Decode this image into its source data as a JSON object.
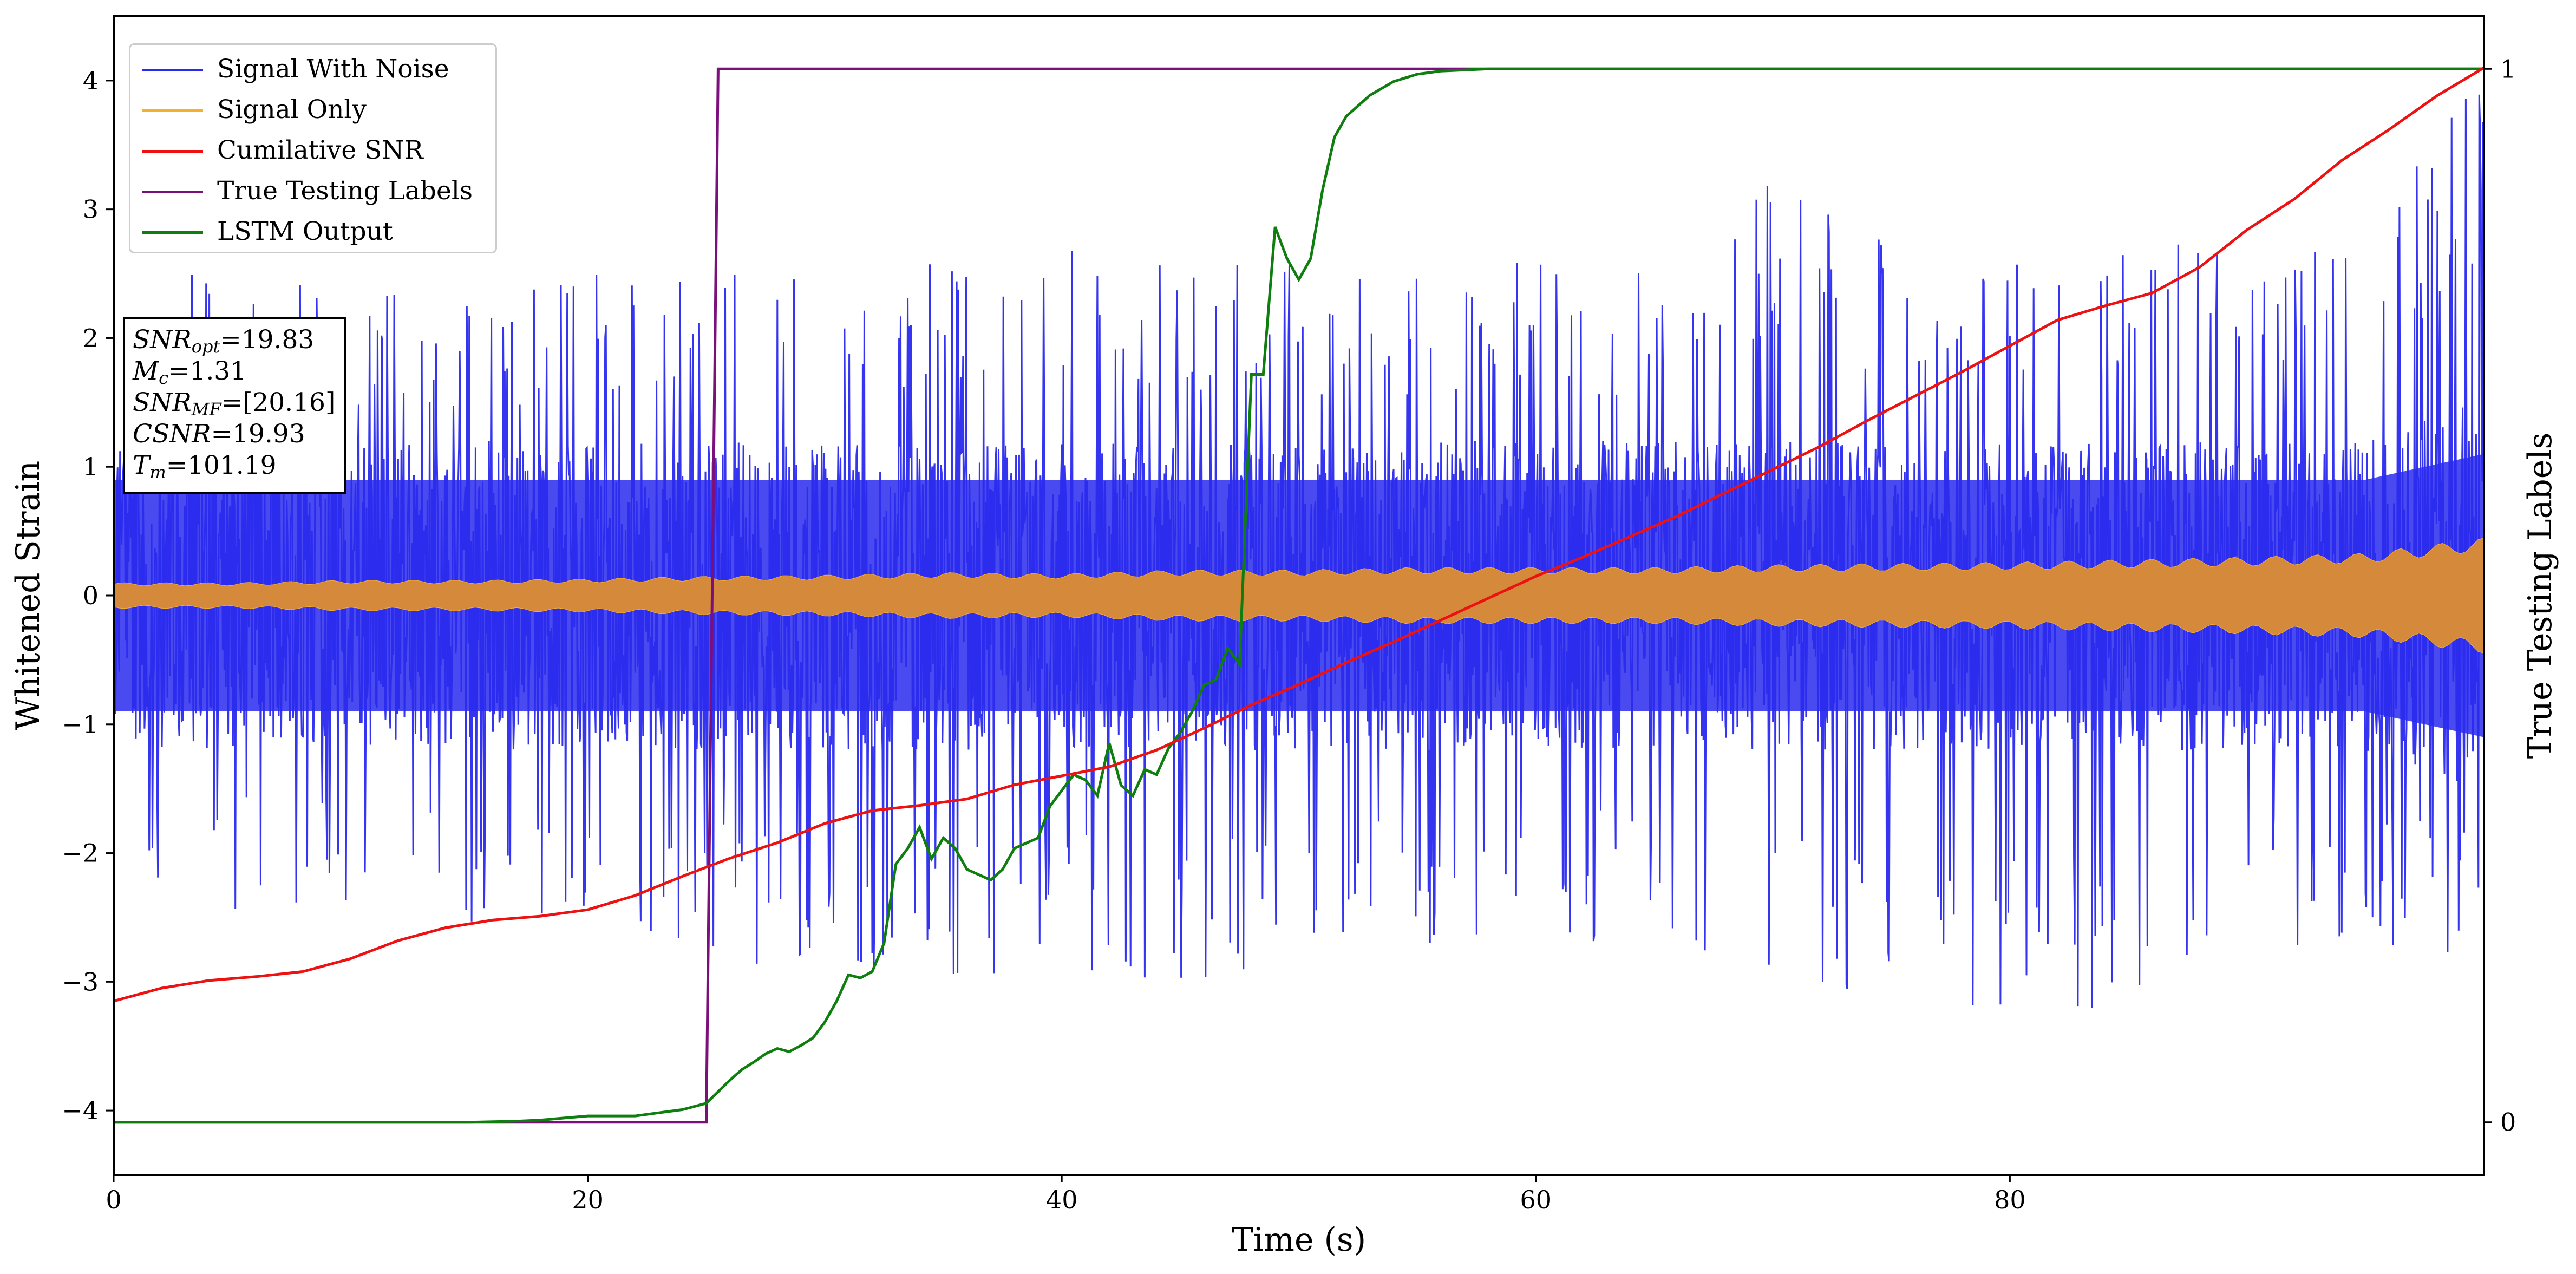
{
  "chart_data": {
    "type": "line",
    "x": [
      0,
      2,
      4,
      6,
      8,
      10,
      12,
      14,
      16,
      18,
      20,
      22,
      24,
      26,
      28,
      30,
      32,
      34,
      36,
      38,
      40,
      42,
      44,
      46,
      48,
      50,
      52,
      54,
      56,
      58,
      60,
      62,
      64,
      66,
      68,
      70,
      72,
      74,
      76,
      78,
      80,
      82,
      84,
      86,
      88,
      90,
      92,
      94,
      96,
      98,
      100
    ],
    "series": [
      {
        "name": "Signal With Noise",
        "color": "#2a2aef",
        "axis": "left",
        "noise_envelope": {
          "x": [
            0,
            5,
            10,
            15,
            20,
            25,
            30,
            35,
            40,
            45,
            50,
            55,
            60,
            65,
            70,
            75,
            80,
            85,
            90,
            95,
            100
          ],
          "upper": [
            2.5,
            2.5,
            2.4,
            2.4,
            2.5,
            2.6,
            2.6,
            2.6,
            2.7,
            2.6,
            2.6,
            2.6,
            2.6,
            2.6,
            3.3,
            2.8,
            2.8,
            2.8,
            2.8,
            2.8,
            4.1
          ],
          "lower": [
            -2.3,
            -2.6,
            -2.6,
            -2.6,
            -2.6,
            -2.9,
            -2.9,
            -3.0,
            -3.0,
            -3.0,
            -3.0,
            -2.7,
            -2.7,
            -2.7,
            -3.2,
            -3.0,
            -3.4,
            -3.2,
            -2.8,
            -2.8,
            -3.0
          ],
          "core_upper": [
            0.6,
            0.6,
            0.6,
            0.6,
            0.6,
            0.6,
            0.6,
            0.6,
            0.6,
            0.6,
            0.6,
            0.6,
            0.6,
            0.6,
            0.6,
            0.6,
            0.6,
            0.6,
            0.6,
            0.6,
            0.8
          ],
          "core_lower": [
            -0.6,
            -0.6,
            -0.6,
            -0.6,
            -0.6,
            -0.6,
            -0.6,
            -0.6,
            -0.6,
            -0.6,
            -0.6,
            -0.6,
            -0.6,
            -0.6,
            -0.6,
            -0.6,
            -0.6,
            -0.6,
            -0.6,
            -0.6,
            -0.8
          ]
        }
      },
      {
        "name": "Signal Only",
        "color": "#f5b02e",
        "fill_color": "#d5893a",
        "axis": "left",
        "amplitude_envelope": {
          "x": [
            0,
            5,
            10,
            15,
            20,
            25,
            30,
            35,
            40,
            45,
            50,
            55,
            60,
            65,
            70,
            75,
            80,
            85,
            90,
            95,
            100
          ],
          "amp": [
            0.1,
            0.1,
            0.12,
            0.12,
            0.13,
            0.15,
            0.16,
            0.18,
            0.17,
            0.2,
            0.2,
            0.22,
            0.22,
            0.22,
            0.24,
            0.25,
            0.26,
            0.28,
            0.3,
            0.33,
            0.45
          ]
        }
      },
      {
        "name": "Cumilative SNR",
        "color": "#ee1111",
        "axis": "left",
        "x": [
          0,
          2,
          4,
          6,
          8,
          10,
          12,
          14,
          16,
          18,
          20,
          22,
          24,
          26,
          28,
          30,
          32,
          34,
          36,
          38,
          40,
          42,
          44,
          46,
          48,
          50,
          52,
          54,
          56,
          58,
          60,
          62,
          64,
          66,
          68,
          70,
          72,
          74,
          76,
          78,
          80,
          82,
          84,
          86,
          88,
          90,
          92,
          94,
          96,
          98,
          100
        ],
        "values": [
          -3.15,
          -3.05,
          -2.99,
          -2.96,
          -2.92,
          -2.82,
          -2.68,
          -2.58,
          -2.52,
          -2.49,
          -2.44,
          -2.33,
          -2.18,
          -2.04,
          -1.92,
          -1.77,
          -1.67,
          -1.63,
          -1.58,
          -1.47,
          -1.4,
          -1.33,
          -1.2,
          -1.03,
          -0.85,
          -0.69,
          -0.52,
          -0.36,
          -0.19,
          -0.02,
          0.15,
          0.3,
          0.46,
          0.62,
          0.8,
          0.98,
          1.16,
          1.36,
          1.55,
          1.74,
          1.94,
          2.14,
          2.25,
          2.35,
          2.55,
          2.84,
          3.08,
          3.38,
          3.62,
          3.88,
          4.1
        ]
      },
      {
        "name": "True Testing Labels",
        "color": "#7b0f7b",
        "axis": "right",
        "x": [
          0,
          25,
          25.5,
          100
        ],
        "values": [
          0,
          0,
          1,
          1
        ]
      },
      {
        "name": "LSTM Output",
        "color": "#0e7f0e",
        "axis": "right",
        "x": [
          0,
          5,
          10,
          15,
          17,
          18,
          19,
          20,
          21,
          22,
          23,
          24,
          25,
          26,
          26.5,
          27,
          27.5,
          28,
          28.5,
          29,
          29.5,
          30,
          30.5,
          31,
          31.5,
          32,
          32.5,
          33,
          33.5,
          34,
          34.5,
          35,
          35.5,
          36,
          36.5,
          37,
          37.5,
          38,
          38.5,
          39,
          39.5,
          40,
          40.5,
          41,
          41.5,
          42,
          42.5,
          43,
          43.5,
          44,
          44.5,
          45,
          45.5,
          46,
          46.5,
          47,
          47.5,
          48,
          48.5,
          49,
          49.5,
          50,
          50.5,
          51,
          51.5,
          52,
          52.5,
          53,
          54,
          55,
          56,
          58,
          60,
          65,
          70,
          80,
          90,
          100
        ],
        "values": [
          0,
          0,
          0,
          0,
          0.001,
          0.002,
          0.004,
          0.006,
          0.006,
          0.006,
          0.009,
          0.012,
          0.018,
          0.04,
          0.05,
          0.057,
          0.065,
          0.07,
          0.067,
          0.073,
          0.08,
          0.095,
          0.115,
          0.14,
          0.137,
          0.143,
          0.17,
          0.245,
          0.26,
          0.28,
          0.25,
          0.27,
          0.26,
          0.24,
          0.235,
          0.23,
          0.24,
          0.26,
          0.265,
          0.27,
          0.3,
          0.315,
          0.33,
          0.325,
          0.31,
          0.36,
          0.32,
          0.31,
          0.335,
          0.33,
          0.355,
          0.37,
          0.39,
          0.415,
          0.42,
          0.45,
          0.435,
          0.71,
          0.71,
          0.85,
          0.82,
          0.8,
          0.82,
          0.885,
          0.935,
          0.955,
          0.965,
          0.975,
          0.988,
          0.995,
          0.998,
          1.0,
          1.0,
          1.0,
          1.0,
          1.0,
          1.0,
          1.0
        ]
      }
    ],
    "xlabel": "Time (s)",
    "ylabel": "Whitened Strain",
    "y2label": "True Testing Labels",
    "xlim": [
      0,
      100
    ],
    "ylim": [
      -4.5,
      4.5
    ],
    "y2lim": [
      -0.05,
      1.05
    ],
    "xticks": [
      0,
      20,
      40,
      60,
      80
    ],
    "xtick_labels": [
      "0",
      "20",
      "40",
      "60",
      "80"
    ],
    "yticks": [
      -4,
      -3,
      -2,
      -1,
      0,
      1,
      2,
      3,
      4
    ],
    "ytick_labels": [
      "−4",
      "−3",
      "−2",
      "−1",
      "0",
      "1",
      "2",
      "3",
      "4"
    ],
    "y2ticks": [
      0,
      1
    ],
    "y2tick_labels": [
      "0",
      "1"
    ],
    "legend_position": "top-left",
    "grid": false
  },
  "legend": {
    "items": [
      {
        "label": "Signal With Noise",
        "color": "#2a2aef"
      },
      {
        "label": "Signal Only",
        "color": "#f5b02e"
      },
      {
        "label": "Cumilative SNR",
        "color": "#ee1111"
      },
      {
        "label": "True Testing Labels",
        "color": "#7b0f7b"
      },
      {
        "label": "LSTM Output",
        "color": "#0e7f0e"
      }
    ]
  },
  "infobox": {
    "snr_opt_base": "SNR",
    "snr_opt_sub": "opt",
    "snr_opt_value": "=19.83",
    "mc_base": "M",
    "mc_sub": "c",
    "mc_value": "=1.31",
    "snr_mf_base": "SNR",
    "snr_mf_sub": "MF",
    "snr_mf_value": "=[20.16]",
    "csnr_base": "CSNR",
    "csnr_value": "=19.93",
    "tm_base": "T",
    "tm_sub": "m",
    "tm_value": "=101.19"
  }
}
